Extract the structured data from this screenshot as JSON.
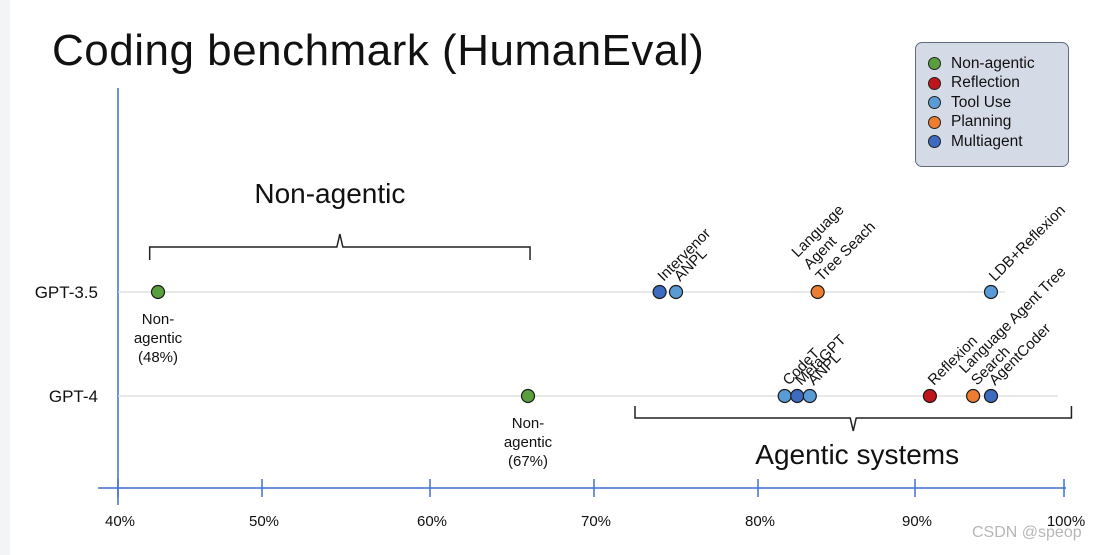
{
  "title": "Coding benchmark (HumanEval)",
  "watermark": "CSDN @speop",
  "colors": {
    "non_agentic": "#5a9f3e",
    "reflection": "#c0141c",
    "tool_use": "#5b9bd5",
    "planning": "#ed7d31",
    "multiagent": "#3c6bbf"
  },
  "legend": [
    {
      "label": "Non-agentic",
      "color": "#5a9f3e"
    },
    {
      "label": "Reflection",
      "color": "#c0141c"
    },
    {
      "label": "Tool Use",
      "color": "#5b9bd5"
    },
    {
      "label": "Planning",
      "color": "#ed7d31"
    },
    {
      "label": "Multiagent",
      "color": "#3c6bbf"
    }
  ],
  "chart_data": {
    "type": "scatter",
    "title": "Coding benchmark (HumanEval)",
    "xlabel": "",
    "ylabel": "",
    "xlim": [
      40,
      100
    ],
    "x_ticks": [
      "40%",
      "50%",
      "60%",
      "70%",
      "80%",
      "90%",
      "100%"
    ],
    "y_categories": [
      "GPT-3.5",
      "GPT-4"
    ],
    "grid": "horizontal lines per model",
    "legend_position": "top-right",
    "brackets": [
      {
        "label": "Non-agentic",
        "row": "GPT-3.5",
        "x_start": 42.2,
        "x_end": 66.1
      },
      {
        "label": "Agentic systems",
        "row": "GPT-4",
        "x_start": 72.5,
        "x_end": 100.5
      }
    ],
    "points": [
      {
        "model": "GPT-3.5",
        "x": 48,
        "label": "Non-\nagentic\n(48%)",
        "category": "Non-agentic"
      },
      {
        "model": "GPT-3.5",
        "x": 74.0,
        "label": "Intervenor",
        "category": "Multiagent"
      },
      {
        "model": "GPT-3.5",
        "x": 75.0,
        "label": "ANPL",
        "category": "Tool Use"
      },
      {
        "model": "GPT-3.5",
        "x": 83.8,
        "label": "Language\nAgent\nTree Seach",
        "category": "Planning"
      },
      {
        "model": "GPT-3.5",
        "x": 95.1,
        "label": "LDB+Reflexion",
        "category": "Tool Use"
      },
      {
        "model": "GPT-4",
        "x": 67,
        "label": "Non-\nagentic\n(67%)",
        "category": "Non-agentic"
      },
      {
        "model": "GPT-4",
        "x": 81.7,
        "label": "CodeT",
        "category": "Tool Use"
      },
      {
        "model": "GPT-4",
        "x": 82.5,
        "label": "MetaGPT",
        "category": "Multiagent"
      },
      {
        "model": "GPT-4",
        "x": 83.3,
        "label": "ANPL",
        "category": "Tool Use"
      },
      {
        "model": "GPT-4",
        "x": 91.0,
        "label": "Reflexion",
        "category": "Reflection"
      },
      {
        "model": "GPT-4",
        "x": 93.9,
        "label": "Language Agent Tree\nSearch",
        "category": "Planning"
      },
      {
        "model": "GPT-4",
        "x": 95.1,
        "label": "AgentCoder",
        "category": "Multiagent"
      }
    ]
  }
}
